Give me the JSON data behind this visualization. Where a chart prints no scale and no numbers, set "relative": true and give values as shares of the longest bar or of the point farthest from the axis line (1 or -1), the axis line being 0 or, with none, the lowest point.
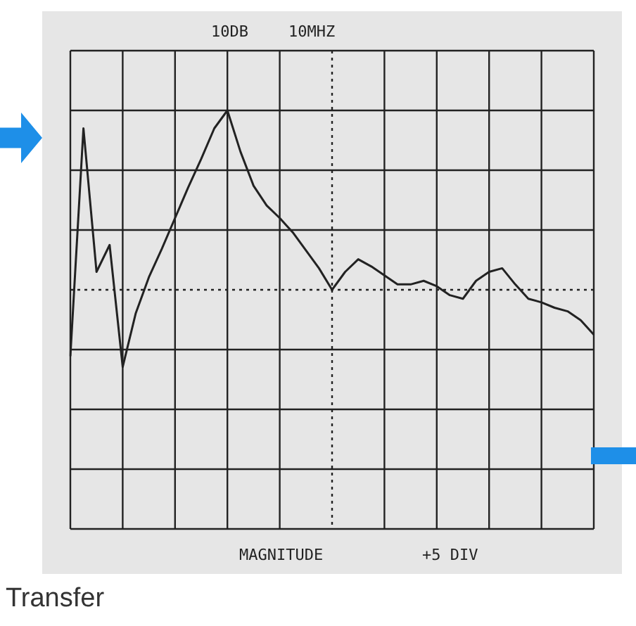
{
  "chart_data": {
    "type": "line",
    "relative": true,
    "grid": true,
    "legend": false,
    "marker": "none",
    "line_style": "solid",
    "tick_labels": false,
    "categories": [
      null,
      null,
      null,
      null,
      null,
      null,
      null,
      null,
      null,
      null,
      null,
      null,
      null,
      null,
      null,
      null,
      null,
      null,
      null,
      null,
      null,
      null,
      null,
      null,
      null,
      null,
      null,
      null,
      null,
      null,
      null,
      null,
      null,
      null,
      null,
      null,
      null,
      null,
      null,
      null,
      null
    ],
    "series": [
      {
        "color": "#222222",
        "values": [
          -0.37,
          0.9,
          0.1,
          0.25,
          -0.43,
          -0.13,
          0.07,
          0.23,
          0.4,
          0.57,
          0.73,
          0.9,
          1,
          0.77,
          0.58,
          0.47,
          0.4,
          0.32,
          0.22,
          0.12,
          0,
          0.1,
          0.17,
          0.13,
          0.08,
          0.03,
          0.03,
          0.05,
          0.02,
          -0.03,
          -0.05,
          0.05,
          0.1,
          0.12,
          0.03,
          -0.05,
          -0.07,
          -0.1,
          -0.12,
          -0.17,
          -0.25
        ]
      }
    ],
    "ref_lines": [
      {
        "axis": "y",
        "value": 0,
        "line_style": "dotted",
        "color": "#222222"
      }
    ],
    "annotations": [
      "10DB",
      "10MHZ",
      "MAGNITUDE",
      "+5 DIV",
      "Transfer"
    ]
  }
}
